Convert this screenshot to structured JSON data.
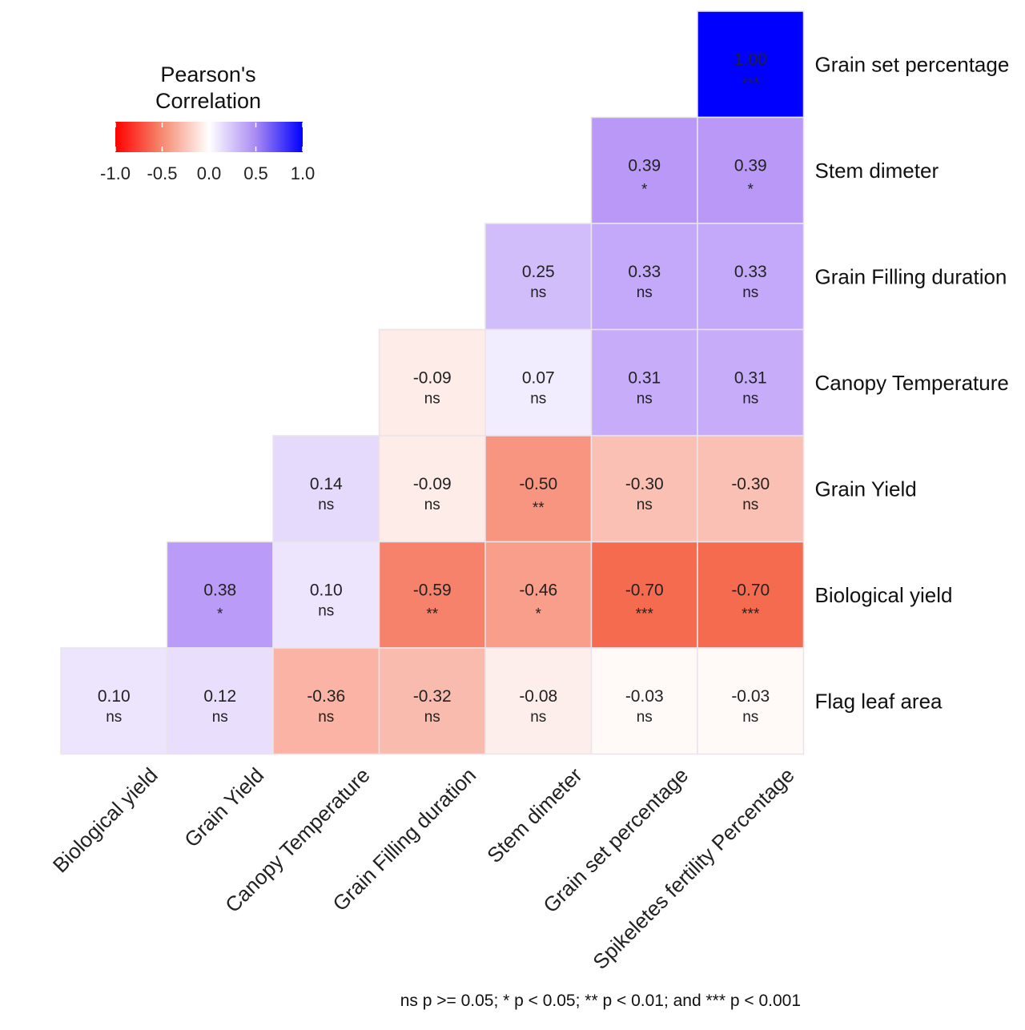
{
  "chart_data": {
    "type": "heatmap",
    "title": "",
    "layout": "lower-triangle correlation matrix",
    "rows": [
      "Grain set percentage",
      "Stem dimeter",
      "Grain Filling duration",
      "Canopy Temperature",
      "Grain Yield",
      "Biological yield",
      "Flag leaf area"
    ],
    "columns": [
      "Biological yield",
      "Grain Yield",
      "Canopy Temperature",
      "Grain Filling duration",
      "Stem dimeter",
      "Grain set percentage",
      "Spikeletes fertility Percentage"
    ],
    "cells": [
      {
        "row": "Grain set percentage",
        "col": "Spikeletes fertility Percentage",
        "label": "1.00",
        "value": 1.0,
        "sig": "***"
      },
      {
        "row": "Stem dimeter",
        "col": "Grain set percentage",
        "label": "0.39",
        "value": 0.39,
        "sig": "*"
      },
      {
        "row": "Stem dimeter",
        "col": "Spikeletes fertility Percentage",
        "label": "0.39",
        "value": 0.39,
        "sig": "*"
      },
      {
        "row": "Grain Filling duration",
        "col": "Stem dimeter",
        "label": "0.25",
        "value": 0.25,
        "sig": "ns"
      },
      {
        "row": "Grain Filling duration",
        "col": "Grain set percentage",
        "label": "0.33",
        "value": 0.33,
        "sig": "ns"
      },
      {
        "row": "Grain Filling duration",
        "col": "Spikeletes fertility Percentage",
        "label": "0.33",
        "value": 0.33,
        "sig": "ns"
      },
      {
        "row": "Canopy Temperature",
        "col": "Grain Filling duration",
        "label": "-0.09",
        "value": -0.09,
        "sig": "ns"
      },
      {
        "row": "Canopy Temperature",
        "col": "Stem dimeter",
        "label": "0.07",
        "value": 0.07,
        "sig": "ns"
      },
      {
        "row": "Canopy Temperature",
        "col": "Grain set percentage",
        "label": "0.31",
        "value": 0.31,
        "sig": "ns"
      },
      {
        "row": "Canopy Temperature",
        "col": "Spikeletes fertility Percentage",
        "label": "0.31",
        "value": 0.31,
        "sig": "ns"
      },
      {
        "row": "Grain Yield",
        "col": "Canopy Temperature",
        "label": "0.14",
        "value": 0.14,
        "sig": "ns"
      },
      {
        "row": "Grain Yield",
        "col": "Grain Filling duration",
        "label": "-0.09",
        "value": -0.09,
        "sig": "ns"
      },
      {
        "row": "Grain Yield",
        "col": "Stem dimeter",
        "label": "-0.50",
        "value": -0.5,
        "sig": "**"
      },
      {
        "row": "Grain Yield",
        "col": "Grain set percentage",
        "label": "-0.30",
        "value": -0.3,
        "sig": "ns"
      },
      {
        "row": "Grain Yield",
        "col": "Spikeletes fertility Percentage",
        "label": "-0.30",
        "value": -0.3,
        "sig": "ns"
      },
      {
        "row": "Biological yield",
        "col": "Grain Yield",
        "label": "0.38",
        "value": 0.38,
        "sig": "*"
      },
      {
        "row": "Biological yield",
        "col": "Canopy Temperature",
        "label": "0.10",
        "value": 0.1,
        "sig": "ns"
      },
      {
        "row": "Biological yield",
        "col": "Grain Filling duration",
        "label": "-0.59",
        "value": -0.59,
        "sig": "**"
      },
      {
        "row": "Biological yield",
        "col": "Stem dimeter",
        "label": "-0.46",
        "value": -0.46,
        "sig": "*"
      },
      {
        "row": "Biological yield",
        "col": "Grain set percentage",
        "label": "-0.70",
        "value": -0.7,
        "sig": "***"
      },
      {
        "row": "Biological yield",
        "col": "Spikeletes fertility Percentage",
        "label": "-0.70",
        "value": -0.7,
        "sig": "***"
      },
      {
        "row": "Flag leaf area",
        "col": "Biological yield",
        "label": "0.10",
        "value": 0.1,
        "sig": "ns"
      },
      {
        "row": "Flag leaf area",
        "col": "Grain Yield",
        "label": "0.12",
        "value": 0.12,
        "sig": "ns"
      },
      {
        "row": "Flag leaf area",
        "col": "Canopy Temperature",
        "label": "-0.36",
        "value": -0.36,
        "sig": "ns"
      },
      {
        "row": "Flag leaf area",
        "col": "Grain Filling duration",
        "label": "-0.32",
        "value": -0.32,
        "sig": "ns"
      },
      {
        "row": "Flag leaf area",
        "col": "Stem dimeter",
        "label": "-0.08",
        "value": -0.08,
        "sig": "ns"
      },
      {
        "row": "Flag leaf area",
        "col": "Grain set percentage",
        "label": "-0.03",
        "value": -0.03,
        "sig": "ns"
      },
      {
        "row": "Flag leaf area",
        "col": "Spikeletes fertility Percentage",
        "label": "-0.03",
        "value": -0.03,
        "sig": "ns"
      }
    ],
    "legend": {
      "title_line1": "Pearson's",
      "title_line2": "Correlation",
      "ticks": [
        "-1.0",
        "-0.5",
        "0.0",
        "0.5",
        "1.0"
      ],
      "range": [
        -1.0,
        1.0
      ],
      "placement": "top-left"
    },
    "colors": {
      "negative": "#ff0000",
      "zero": "#ffffff",
      "positive": "#0000ff",
      "mid_positive": "#a57bf6",
      "mid_negative": "#f56b4f"
    },
    "footnote": "ns p >= 0.05; * p < 0.05; ** p < 0.01; and *** p < 0.001"
  }
}
